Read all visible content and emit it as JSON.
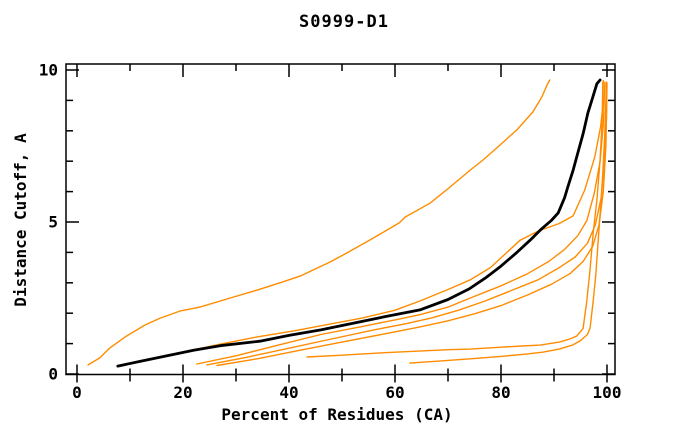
{
  "window": {
    "background": "#ffffff"
  },
  "chart_data": {
    "type": "line",
    "title": "S0999-D1",
    "xlabel": "Percent of Residues (CA)",
    "ylabel": "Distance Cutoff, A",
    "xlim": [
      0,
      100
    ],
    "ylim": [
      0,
      10
    ],
    "grid": false,
    "legend": "none",
    "x_major_ticks": [
      0,
      20,
      40,
      60,
      80,
      100
    ],
    "x_tick_labels": [
      "0",
      "20",
      "40",
      "60",
      "80",
      "100"
    ],
    "x_minor_ticks": [
      10,
      30,
      50,
      70,
      90
    ],
    "y_major_ticks": [
      0,
      5,
      10
    ],
    "y_tick_labels": [
      "0",
      "5",
      "10"
    ],
    "y_minor_ticks": [
      1,
      2,
      3,
      4,
      6,
      7,
      8,
      9
    ],
    "colors": {
      "highlighted_model": "#000000",
      "other_models": "#ff8c00",
      "frame": "#000000"
    },
    "series": [
      {
        "name": "model-curve-steep",
        "color": "#ff8c00",
        "width": 1.4,
        "points": [
          [
            2.1,
            0.3
          ],
          [
            4.3,
            0.53
          ],
          [
            6.2,
            0.86
          ],
          [
            9.1,
            1.22
          ],
          [
            12.8,
            1.61
          ],
          [
            15.7,
            1.84
          ],
          [
            19.4,
            2.07
          ],
          [
            23.2,
            2.2
          ],
          [
            28.9,
            2.5
          ],
          [
            34,
            2.76
          ],
          [
            38.3,
            3.0
          ],
          [
            42.1,
            3.22
          ],
          [
            47.7,
            3.68
          ],
          [
            50.9,
            3.98
          ],
          [
            55.3,
            4.41
          ],
          [
            60.8,
            4.97
          ],
          [
            61.9,
            5.16
          ],
          [
            66.6,
            5.62
          ],
          [
            70.4,
            6.15
          ],
          [
            74.2,
            6.71
          ],
          [
            76.6,
            7.04
          ],
          [
            79.8,
            7.53
          ],
          [
            83,
            8.03
          ],
          [
            86,
            8.62
          ],
          [
            87.7,
            9.11
          ],
          [
            88.7,
            9.51
          ],
          [
            89.2,
            9.67
          ]
        ]
      },
      {
        "name": "model-curve-2",
        "color": "#ff8c00",
        "width": 1.4,
        "points": [
          [
            7.8,
            0.25
          ],
          [
            14,
            0.5
          ],
          [
            20,
            0.72
          ],
          [
            27,
            0.98
          ],
          [
            34,
            1.22
          ],
          [
            41,
            1.42
          ],
          [
            48,
            1.65
          ],
          [
            54,
            1.85
          ],
          [
            60,
            2.1
          ],
          [
            64.7,
            2.4
          ],
          [
            70,
            2.78
          ],
          [
            74.2,
            3.1
          ],
          [
            78,
            3.5
          ],
          [
            83.6,
            4.4
          ],
          [
            87,
            4.7
          ],
          [
            91,
            4.95
          ],
          [
            93.6,
            5.2
          ],
          [
            95.8,
            6.05
          ],
          [
            97.7,
            7.14
          ],
          [
            98.8,
            8.13
          ],
          [
            99.2,
            8.8
          ],
          [
            99.3,
            9.65
          ]
        ]
      },
      {
        "name": "model-curve-3",
        "color": "#ff8c00",
        "width": 1.4,
        "points": [
          [
            22.6,
            0.33
          ],
          [
            30,
            0.6
          ],
          [
            38,
            0.95
          ],
          [
            46,
            1.3
          ],
          [
            53.4,
            1.55
          ],
          [
            60,
            1.78
          ],
          [
            64.7,
            1.95
          ],
          [
            70,
            2.2
          ],
          [
            74.2,
            2.5
          ],
          [
            80,
            2.9
          ],
          [
            85,
            3.3
          ],
          [
            89,
            3.7
          ],
          [
            92,
            4.1
          ],
          [
            94.5,
            4.55
          ],
          [
            96.2,
            5.05
          ],
          [
            97.6,
            5.95
          ],
          [
            98.7,
            7.0
          ],
          [
            99.3,
            8.2
          ],
          [
            99.6,
            9.6
          ]
        ]
      },
      {
        "name": "model-curve-4",
        "color": "#ff8c00",
        "width": 1.4,
        "points": [
          [
            24.5,
            0.3
          ],
          [
            32,
            0.55
          ],
          [
            40,
            0.85
          ],
          [
            48,
            1.15
          ],
          [
            56,
            1.45
          ],
          [
            62,
            1.65
          ],
          [
            67,
            1.85
          ],
          [
            72,
            2.1
          ],
          [
            77,
            2.4
          ],
          [
            82,
            2.75
          ],
          [
            87,
            3.1
          ],
          [
            91,
            3.5
          ],
          [
            94,
            3.85
          ],
          [
            96.3,
            4.3
          ],
          [
            97.8,
            4.9
          ],
          [
            98.9,
            5.8
          ],
          [
            99.5,
            7.0
          ],
          [
            99.9,
            8.4
          ],
          [
            99.95,
            9.6
          ]
        ]
      },
      {
        "name": "model-curve-5",
        "color": "#ff8c00",
        "width": 1.4,
        "points": [
          [
            26.4,
            0.28
          ],
          [
            34,
            0.5
          ],
          [
            42,
            0.78
          ],
          [
            50,
            1.05
          ],
          [
            58,
            1.32
          ],
          [
            64.7,
            1.55
          ],
          [
            70,
            1.75
          ],
          [
            75,
            1.98
          ],
          [
            80,
            2.25
          ],
          [
            85,
            2.6
          ],
          [
            89.5,
            2.95
          ],
          [
            93,
            3.3
          ],
          [
            95.5,
            3.7
          ],
          [
            97.3,
            4.2
          ],
          [
            98.5,
            4.9
          ],
          [
            99.3,
            6.0
          ],
          [
            99.8,
            7.5
          ],
          [
            100,
            9.55
          ]
        ]
      },
      {
        "name": "model-curve-flat-1",
        "color": "#ff8c00",
        "width": 1.4,
        "points": [
          [
            43.4,
            0.56
          ],
          [
            50,
            0.62
          ],
          [
            58,
            0.7
          ],
          [
            65,
            0.76
          ],
          [
            70,
            0.8
          ],
          [
            74.2,
            0.82
          ],
          [
            80,
            0.88
          ],
          [
            84,
            0.92
          ],
          [
            87.4,
            0.95
          ],
          [
            91,
            1.05
          ],
          [
            93,
            1.15
          ],
          [
            94.3,
            1.25
          ],
          [
            95.5,
            1.5
          ],
          [
            96.2,
            2.43
          ],
          [
            96.8,
            3.42
          ],
          [
            97.4,
            4.64
          ],
          [
            98.1,
            5.72
          ],
          [
            98.7,
            7.04
          ],
          [
            99.1,
            8.36
          ],
          [
            99.2,
            9.6
          ]
        ]
      },
      {
        "name": "model-curve-flat-2",
        "color": "#ff8c00",
        "width": 1.4,
        "points": [
          [
            62.8,
            0.36
          ],
          [
            68,
            0.42
          ],
          [
            74.2,
            0.5
          ],
          [
            80,
            0.58
          ],
          [
            85,
            0.66
          ],
          [
            88,
            0.72
          ],
          [
            91,
            0.82
          ],
          [
            93.5,
            0.95
          ],
          [
            95,
            1.1
          ],
          [
            96.3,
            1.3
          ],
          [
            96.8,
            1.5
          ],
          [
            97.4,
            2.4
          ],
          [
            97.9,
            3.3
          ],
          [
            98.3,
            4.3
          ],
          [
            98.8,
            5.5
          ],
          [
            99.2,
            6.6
          ],
          [
            99.6,
            8.0
          ],
          [
            99.9,
            9.6
          ]
        ]
      },
      {
        "name": "highlighted-model-curve",
        "color": "#000000",
        "width": 2.8,
        "points": [
          [
            7.7,
            0.26
          ],
          [
            12,
            0.42
          ],
          [
            17,
            0.6
          ],
          [
            22,
            0.78
          ],
          [
            27,
            0.93
          ],
          [
            34.5,
            1.08
          ],
          [
            40,
            1.27
          ],
          [
            46,
            1.45
          ],
          [
            53,
            1.7
          ],
          [
            58,
            1.88
          ],
          [
            64.7,
            2.11
          ],
          [
            70,
            2.45
          ],
          [
            74,
            2.8
          ],
          [
            77,
            3.15
          ],
          [
            80,
            3.55
          ],
          [
            83,
            4.0
          ],
          [
            85.5,
            4.4
          ],
          [
            87.5,
            4.75
          ],
          [
            89.5,
            5.05
          ],
          [
            90.8,
            5.3
          ],
          [
            92,
            5.8
          ],
          [
            92.6,
            6.15
          ],
          [
            93.6,
            6.7
          ],
          [
            94.5,
            7.27
          ],
          [
            95.5,
            7.9
          ],
          [
            96.4,
            8.59
          ],
          [
            97.3,
            9.1
          ],
          [
            98.1,
            9.55
          ],
          [
            98.7,
            9.67
          ]
        ]
      }
    ]
  }
}
